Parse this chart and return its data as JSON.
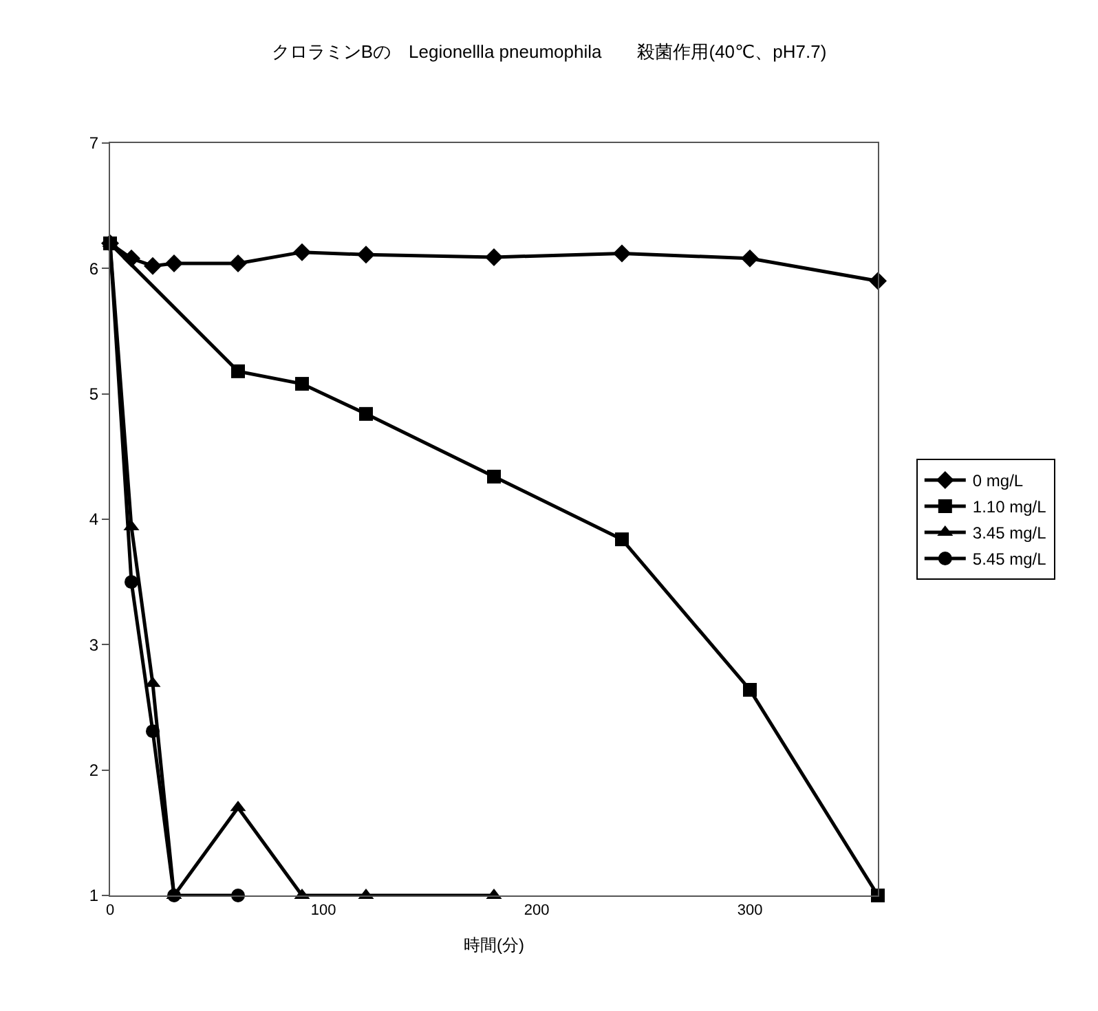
{
  "chart_data": {
    "type": "line",
    "title": "クロラミンBの　Legionellla pneumophila　　殺菌作用(40℃、pH7.7)",
    "xlabel": "時間(分)",
    "xlim": [
      0,
      360
    ],
    "xticks": [
      0,
      100,
      200,
      300
    ],
    "ylim": [
      1,
      7
    ],
    "yticks": [
      1,
      2,
      3,
      4,
      5,
      6,
      7
    ],
    "legend": "right",
    "series": [
      {
        "name": "0 mg/L",
        "color": "#000000",
        "marker": "diamond",
        "x": [
          0,
          10,
          20,
          30,
          60,
          90,
          120,
          180,
          240,
          300,
          360
        ],
        "values": [
          6.2,
          6.08,
          6.02,
          6.04,
          6.04,
          6.13,
          6.11,
          6.09,
          6.12,
          6.08,
          5.9
        ]
      },
      {
        "name": "1.10 mg/L",
        "color": "#000000",
        "marker": "square",
        "x": [
          0,
          60,
          90,
          120,
          180,
          240,
          300,
          360
        ],
        "values": [
          6.2,
          5.18,
          5.08,
          4.84,
          4.34,
          3.84,
          2.64,
          1.0
        ]
      },
      {
        "name": "3.45 mg/L",
        "color": "#000000",
        "marker": "triangle",
        "x": [
          0,
          10,
          20,
          30,
          60,
          90,
          120,
          180
        ],
        "values": [
          6.2,
          3.94,
          2.69,
          1.0,
          1.7,
          1.0,
          1.0,
          1.0
        ]
      },
      {
        "name": "5.45 mg/L",
        "color": "#000000",
        "marker": "circle",
        "x": [
          0,
          10,
          20,
          30,
          60
        ],
        "values": [
          6.2,
          3.5,
          2.31,
          1.0,
          1.0
        ]
      }
    ]
  }
}
